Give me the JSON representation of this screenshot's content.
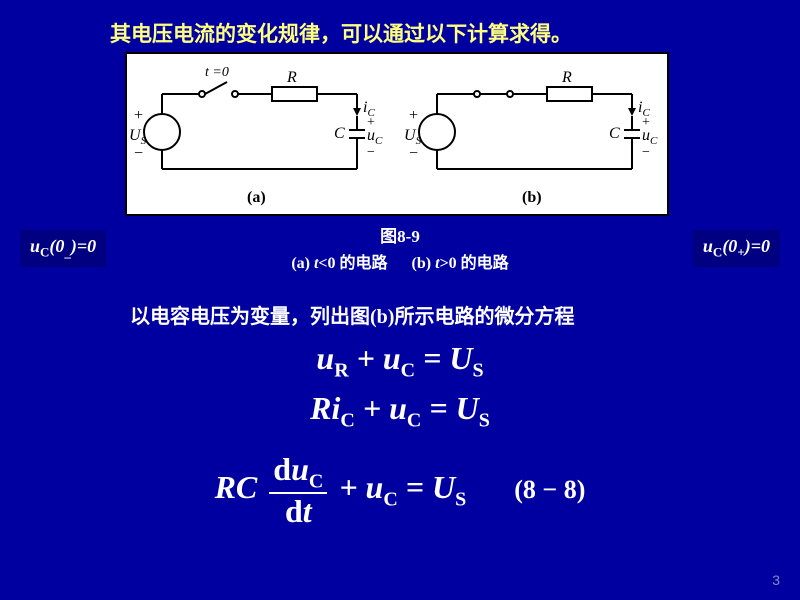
{
  "title": "其电压电流的变化规律，可以通过以下计算求得。",
  "badge_left_html": "u<sub>C</sub>(0<sub>_</sub>)=0",
  "badge_right_html": "u<sub>C</sub>(0<sub>+</sub>)=0",
  "caption_line1": "图8-9",
  "caption_a_html": "(a) <i>t</i><0 的电路",
  "caption_b_html": "(b) <i>t</i>>0 的电路",
  "subtitle": "以电容电压为变量，列出图(b)所示电路的微分方程",
  "eq1_html": "u<sub><span class='rm'>R</span></sub> + u<sub><span class='rm'>C</span></sub> = U<sub><span class='rm'>S</span></sub>",
  "eq2_html": "Ri<sub><span class='rm'>C</span></sub> + u<sub><span class='rm'>C</span></sub> = U<sub><span class='rm'>S</span></sub>",
  "eq3_prefix": "RC",
  "eq3_num_html": "<span class='rm'>d</span>u<sub><span class='rm'>C</span></sub>",
  "eq3_den_html": "<span class='rm'>d</span>t",
  "eq3_rest_html": " + u<sub><span class='rm'>C</span></sub> = U<sub><span class='rm'>S</span></sub>",
  "eq3_no": "(8 − 8)",
  "slide_number": "3",
  "circuit": {
    "stroke": "#000000",
    "stroke_width": 2,
    "a": {
      "label_t": "t =0",
      "label_R": "R",
      "label_iC": "iC",
      "label_C": "C",
      "label_uC": "uC",
      "label_US": "US",
      "label_ab": "(a)"
    },
    "b": {
      "label_R": "R",
      "label_iC": "iC",
      "label_C": "C",
      "label_uC": "uC",
      "label_US": "US",
      "label_ab": "(b)"
    }
  }
}
